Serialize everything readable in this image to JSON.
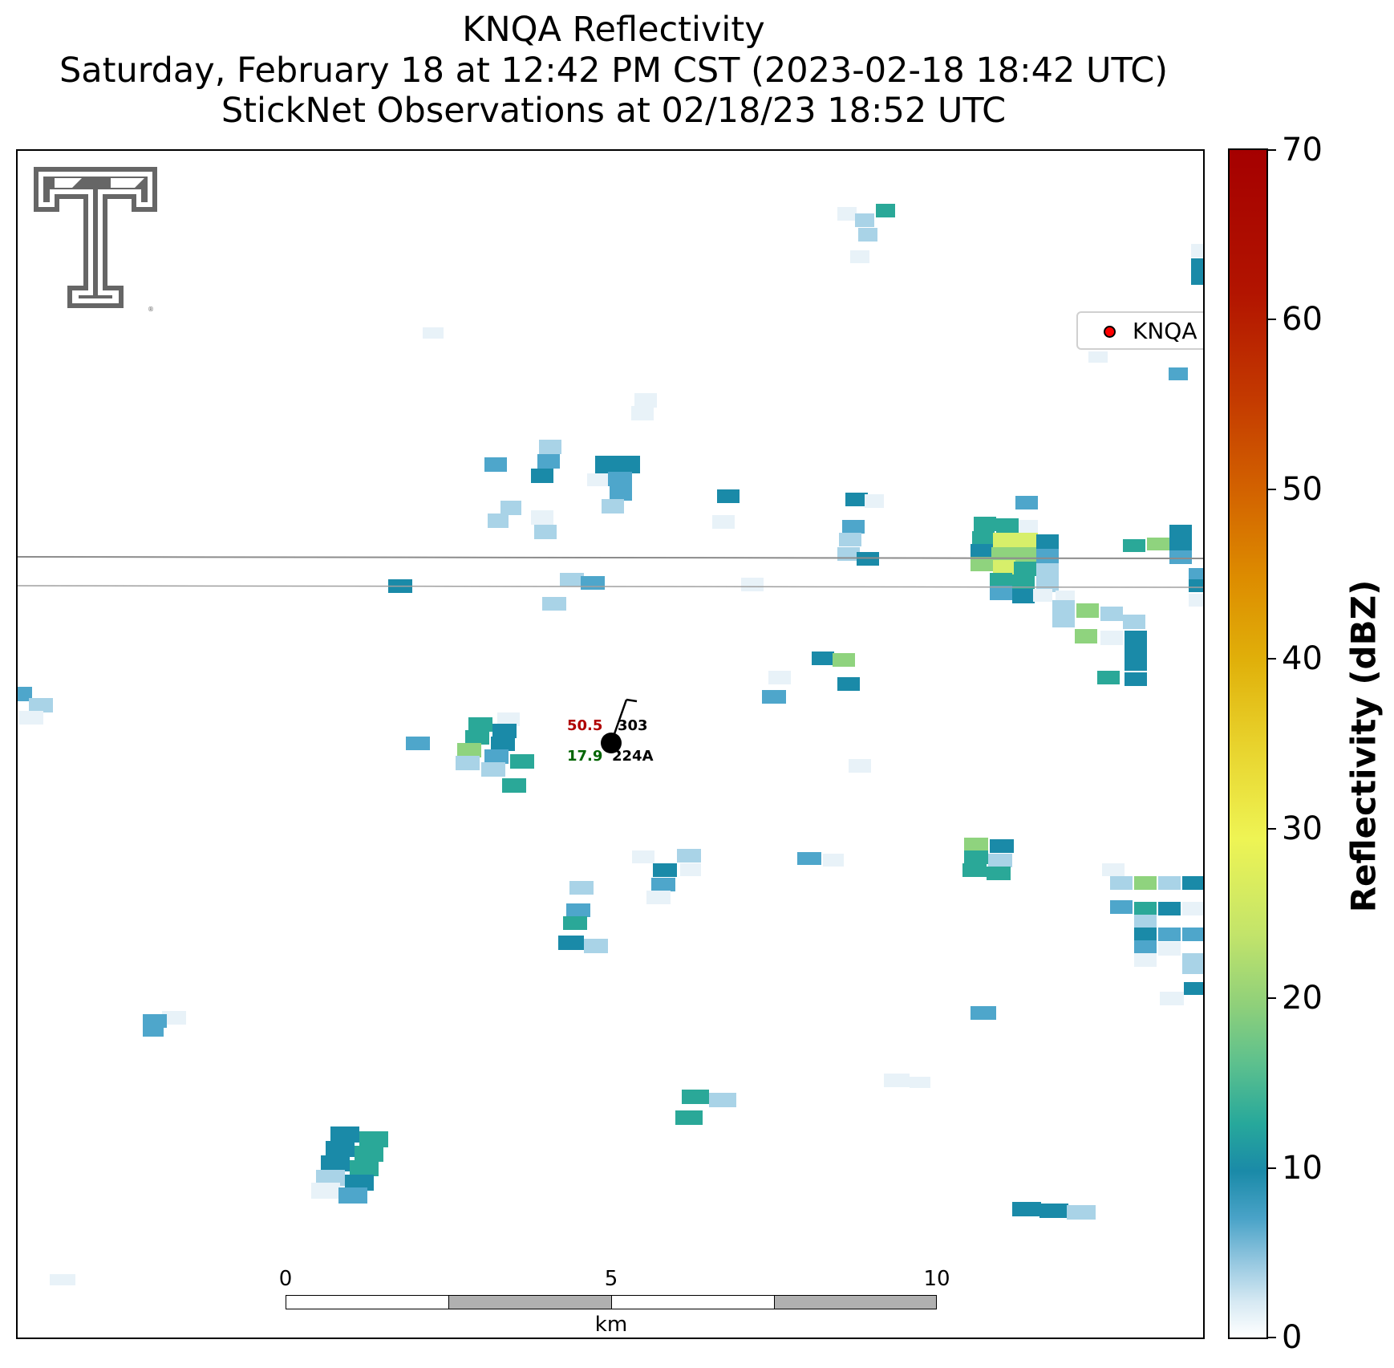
{
  "title": {
    "line1": "KNQA Reflectivity",
    "line2": "Saturday, February 18 at 12:42 PM CST (2023-02-18 18:42 UTC)",
    "line3": "StickNet Observations at 02/18/23 18:52 UTC"
  },
  "legend": {
    "label": "KNQA",
    "marker_color": "#ff0000"
  },
  "colorbar": {
    "label": "Reflectivity (dBZ)",
    "ticks": [
      "0",
      "10",
      "20",
      "30",
      "40",
      "50",
      "60",
      "70"
    ],
    "min": 0,
    "max": 70
  },
  "scalebar": {
    "ticks": [
      "0",
      "5",
      "10"
    ],
    "unit": "km"
  },
  "station": {
    "temperature": "50.5",
    "dewpoint": "17.9",
    "pressure_code": "303",
    "station_id": "224A",
    "temperature_color": "#b00000",
    "dewpoint_color": "#006400"
  },
  "colors": {
    "map_line": "#8c8c8c",
    "scalebar_fill": "#b0b0b0",
    "logo": "#666666"
  }
}
